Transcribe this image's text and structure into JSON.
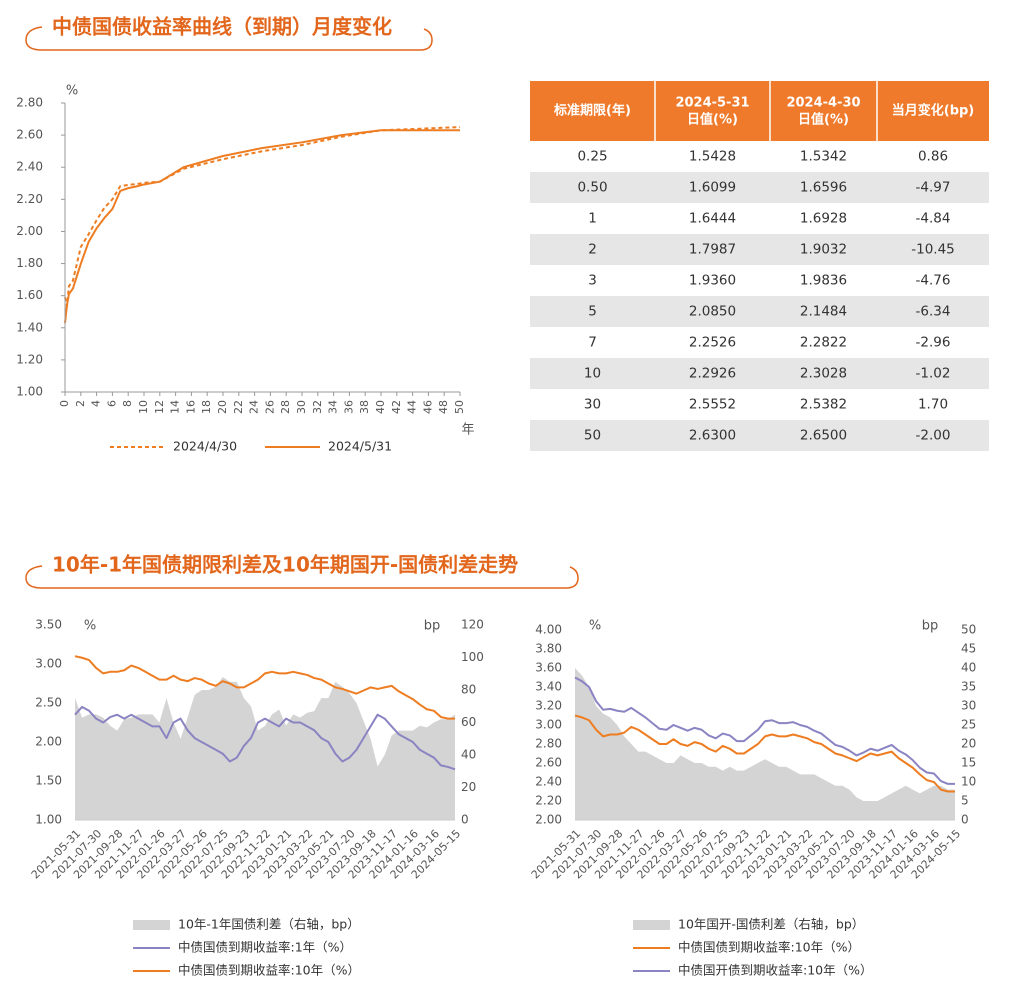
{
  "sections": [
    {
      "title": "中债国债收益率曲线（到期）月度变化"
    },
    {
      "title": "10年-1年国债期限利差及10年期国开-国债利差走势"
    }
  ],
  "table": {
    "header": [
      [
        "标准期限(年)"
      ],
      [
        "2024-5-31",
        "日值(%)"
      ],
      [
        "2024-4-30",
        "日值(%)"
      ],
      [
        "当月变化(bp)"
      ]
    ],
    "rows": [
      [
        "0.25",
        "1.5428",
        "1.5342",
        "0.86"
      ],
      [
        "0.50",
        "1.6099",
        "1.6596",
        "-4.97"
      ],
      [
        "1",
        "1.6444",
        "1.6928",
        "-4.84"
      ],
      [
        "2",
        "1.7987",
        "1.9032",
        "-10.45"
      ],
      [
        "3",
        "1.9360",
        "1.9836",
        "-4.76"
      ],
      [
        "5",
        "2.0850",
        "2.1484",
        "-6.34"
      ],
      [
        "7",
        "2.2526",
        "2.2822",
        "-2.96"
      ],
      [
        "10",
        "2.2926",
        "2.3028",
        "-1.02"
      ],
      [
        "30",
        "2.5552",
        "2.5382",
        "1.70"
      ],
      [
        "50",
        "2.6300",
        "2.6500",
        "-2.00"
      ]
    ]
  },
  "chart_data": [
    {
      "type": "line",
      "ylabel": "%",
      "xlabel": "年",
      "x": [
        0,
        0.25,
        0.5,
        1,
        2,
        3,
        4,
        5,
        6,
        7,
        8,
        9,
        10,
        12,
        15,
        20,
        25,
        30,
        35,
        40,
        45,
        50
      ],
      "series": [
        {
          "name": "2024/4/30",
          "color": "#ee7d22",
          "dash": true,
          "values": [
            1.59,
            1.5342,
            1.6596,
            1.6928,
            1.9032,
            1.9836,
            2.07,
            2.1484,
            2.2,
            2.2822,
            2.29,
            2.295,
            2.3028,
            2.31,
            2.39,
            2.45,
            2.5,
            2.5382,
            2.59,
            2.63,
            2.64,
            2.65
          ]
        },
        {
          "name": "2024/5/31",
          "color": "#ee7d22",
          "dash": false,
          "values": [
            1.43,
            1.5428,
            1.6099,
            1.6444,
            1.7987,
            1.936,
            2.02,
            2.085,
            2.14,
            2.2526,
            2.27,
            2.28,
            2.2926,
            2.31,
            2.4,
            2.47,
            2.52,
            2.5552,
            2.6,
            2.63,
            2.63,
            2.63
          ]
        }
      ],
      "xlim": [
        0,
        50
      ],
      "xticks": [
        0,
        2,
        4,
        6,
        8,
        10,
        12,
        14,
        16,
        18,
        20,
        22,
        24,
        26,
        28,
        30,
        32,
        34,
        36,
        38,
        40,
        42,
        44,
        46,
        48,
        50
      ],
      "ylim": [
        1,
        2.8
      ],
      "yticks": [
        {
          "value": 1,
          "label": "1.00"
        },
        {
          "value": 1.2,
          "label": "1.20"
        },
        {
          "value": 1.4,
          "label": "1.40"
        },
        {
          "value": 1.6,
          "label": "1.60"
        },
        {
          "value": 1.8,
          "label": "1.80"
        },
        {
          "value": 2,
          "label": "2.00"
        },
        {
          "value": 2.2,
          "label": "2.20"
        },
        {
          "value": 2.4,
          "label": "2.40"
        },
        {
          "value": 2.6,
          "label": "2.60"
        },
        {
          "value": 2.8,
          "label": "2.80"
        }
      ]
    },
    {
      "type": "line",
      "ylabel": "%",
      "y2label": "bp",
      "categories": [
        "2021-05-31",
        null,
        null,
        "2021-07-30",
        null,
        null,
        "2021-09-28",
        null,
        null,
        "2021-11-27",
        null,
        null,
        "2022-01-26",
        null,
        null,
        "2022-03-27",
        null,
        null,
        "2022-05-26",
        null,
        null,
        "2022-07-25",
        null,
        null,
        "2022-09-23",
        null,
        null,
        "2022-11-22",
        null,
        null,
        "2023-01-21",
        null,
        null,
        "2023-03-22",
        null,
        null,
        "2023-05-21",
        null,
        null,
        "2023-07-20",
        null,
        null,
        "2023-09-18",
        null,
        null,
        "2023-11-17",
        null,
        null,
        "2024-01-16",
        null,
        null,
        "2024-03-16",
        null,
        null,
        "2024-05-15"
      ],
      "series": [
        {
          "name": "10年-1年国债利差（右轴，bp）",
          "type": "area",
          "axis": "y2",
          "color": "#d4d4d4",
          "values": [
            75,
            63,
            65,
            65,
            63,
            58,
            55,
            62,
            63,
            65,
            65,
            65,
            60,
            75,
            60,
            50,
            63,
            77,
            80,
            80,
            82,
            88,
            85,
            85,
            75,
            70,
            55,
            58,
            65,
            68,
            58,
            65,
            63,
            66,
            67,
            75,
            75,
            85,
            82,
            78,
            72,
            61,
            50,
            33,
            40,
            52,
            55,
            55,
            55,
            58,
            57,
            60,
            62,
            62,
            65
          ]
        },
        {
          "name": "中债国债到期收益率:1年（%）",
          "color": "#8a84c2",
          "values": [
            2.35,
            2.45,
            2.4,
            2.3,
            2.25,
            2.32,
            2.35,
            2.3,
            2.35,
            2.3,
            2.25,
            2.2,
            2.2,
            2.05,
            2.25,
            2.3,
            2.15,
            2.05,
            2,
            1.95,
            1.9,
            1.85,
            1.75,
            1.8,
            1.95,
            2.05,
            2.25,
            2.3,
            2.25,
            2.2,
            2.3,
            2.25,
            2.25,
            2.2,
            2.15,
            2.05,
            2,
            1.85,
            1.75,
            1.8,
            1.9,
            2.05,
            2.2,
            2.35,
            2.3,
            2.2,
            2.1,
            2.05,
            2,
            1.9,
            1.85,
            1.8,
            1.7,
            1.68,
            1.65
          ]
        },
        {
          "name": "中债国债到期收益率:10年（%）",
          "color": "#ee7d22",
          "values": [
            3.1,
            3.08,
            3.05,
            2.95,
            2.88,
            2.9,
            2.9,
            2.92,
            2.98,
            2.95,
            2.9,
            2.85,
            2.8,
            2.8,
            2.85,
            2.8,
            2.78,
            2.82,
            2.8,
            2.75,
            2.72,
            2.78,
            2.75,
            2.7,
            2.7,
            2.75,
            2.8,
            2.88,
            2.9,
            2.88,
            2.88,
            2.9,
            2.88,
            2.86,
            2.82,
            2.8,
            2.75,
            2.7,
            2.68,
            2.65,
            2.62,
            2.66,
            2.7,
            2.68,
            2.7,
            2.72,
            2.65,
            2.6,
            2.55,
            2.48,
            2.42,
            2.4,
            2.32,
            2.3,
            2.3
          ]
        }
      ],
      "ylim": [
        1,
        3.5
      ],
      "yticks": [
        {
          "value": 1,
          "label": "1.00"
        },
        {
          "value": 1.5,
          "label": "1.50"
        },
        {
          "value": 2,
          "label": "2.00"
        },
        {
          "value": 2.5,
          "label": "2.50"
        },
        {
          "value": 3,
          "label": "3.00"
        },
        {
          "value": 3.5,
          "label": "3.50"
        }
      ],
      "y2lim": [
        0,
        120
      ],
      "y2ticks": [
        0,
        20,
        40,
        60,
        80,
        100,
        120
      ]
    },
    {
      "type": "line",
      "ylabel": "%",
      "y2label": "bp",
      "categories": [
        "2021-05-31",
        null,
        null,
        "2021-07-30",
        null,
        null,
        "2021-09-28",
        null,
        null,
        "2021-11-27",
        null,
        null,
        "2022-01-26",
        null,
        null,
        "2022-03-27",
        null,
        null,
        "2022-05-26",
        null,
        null,
        "2022-07-25",
        null,
        null,
        "2022-09-23",
        null,
        null,
        "2022-11-22",
        null,
        null,
        "2023-01-21",
        null,
        null,
        "2023-03-22",
        null,
        null,
        "2023-05-21",
        null,
        null,
        "2023-07-20",
        null,
        null,
        "2023-09-18",
        null,
        null,
        "2023-11-17",
        null,
        null,
        "2024-01-16",
        null,
        null,
        "2024-03-16",
        null,
        null,
        "2024-05-15"
      ],
      "series": [
        {
          "name": "10年国开-国债利差（右轴，bp）",
          "type": "area",
          "axis": "y2",
          "color": "#d4d4d4",
          "values": [
            40,
            38,
            35,
            30,
            28,
            27,
            25,
            22,
            20,
            18,
            18,
            17,
            16,
            15,
            15,
            17,
            16,
            15,
            15,
            14,
            14,
            13,
            14,
            13,
            13,
            14,
            15,
            16,
            15,
            14,
            14,
            13,
            12,
            12,
            12,
            11,
            10,
            9,
            9,
            8,
            6,
            5,
            5,
            5,
            6,
            7,
            8,
            9,
            8,
            7,
            8,
            9,
            9,
            8,
            8
          ]
        },
        {
          "name": "中债国债到期收益率:10年（%）",
          "color": "#ee7d22",
          "values": [
            3.1,
            3.08,
            3.05,
            2.95,
            2.88,
            2.9,
            2.9,
            2.92,
            2.98,
            2.95,
            2.9,
            2.85,
            2.8,
            2.8,
            2.85,
            2.8,
            2.78,
            2.82,
            2.8,
            2.75,
            2.72,
            2.78,
            2.75,
            2.7,
            2.7,
            2.75,
            2.8,
            2.88,
            2.9,
            2.88,
            2.88,
            2.9,
            2.88,
            2.86,
            2.82,
            2.8,
            2.75,
            2.7,
            2.68,
            2.65,
            2.62,
            2.66,
            2.7,
            2.68,
            2.7,
            2.72,
            2.65,
            2.6,
            2.55,
            2.48,
            2.42,
            2.4,
            2.32,
            2.3,
            2.3
          ]
        },
        {
          "name": "中债国开债到期收益率:10年（%）",
          "color": "#8a84c2",
          "values": [
            3.5,
            3.46,
            3.4,
            3.25,
            3.16,
            3.17,
            3.15,
            3.14,
            3.18,
            3.13,
            3.08,
            3.02,
            2.96,
            2.95,
            3,
            2.97,
            2.94,
            2.97,
            2.95,
            2.89,
            2.86,
            2.91,
            2.89,
            2.83,
            2.83,
            2.89,
            2.95,
            3.04,
            3.05,
            3.02,
            3.02,
            3.03,
            3,
            2.98,
            2.94,
            2.91,
            2.85,
            2.79,
            2.77,
            2.73,
            2.68,
            2.71,
            2.75,
            2.73,
            2.76,
            2.79,
            2.73,
            2.69,
            2.63,
            2.55,
            2.5,
            2.49,
            2.41,
            2.38,
            2.38
          ]
        }
      ],
      "ylim": [
        2,
        4
      ],
      "yticks": [
        {
          "value": 2,
          "label": "2.00"
        },
        {
          "value": 2.2,
          "label": "2.20"
        },
        {
          "value": 2.4,
          "label": "2.40"
        },
        {
          "value": 2.6,
          "label": "2.60"
        },
        {
          "value": 2.8,
          "label": "2.80"
        },
        {
          "value": 3,
          "label": "3.00"
        },
        {
          "value": 3.2,
          "label": "3.20"
        },
        {
          "value": 3.4,
          "label": "3.40"
        },
        {
          "value": 3.6,
          "label": "3.60"
        },
        {
          "value": 3.8,
          "label": "3.80"
        },
        {
          "value": 4,
          "label": "4.00"
        }
      ],
      "y2lim": [
        0,
        50
      ],
      "y2ticks": [
        0,
        5,
        10,
        15,
        20,
        25,
        30,
        35,
        40,
        45,
        50
      ]
    }
  ]
}
